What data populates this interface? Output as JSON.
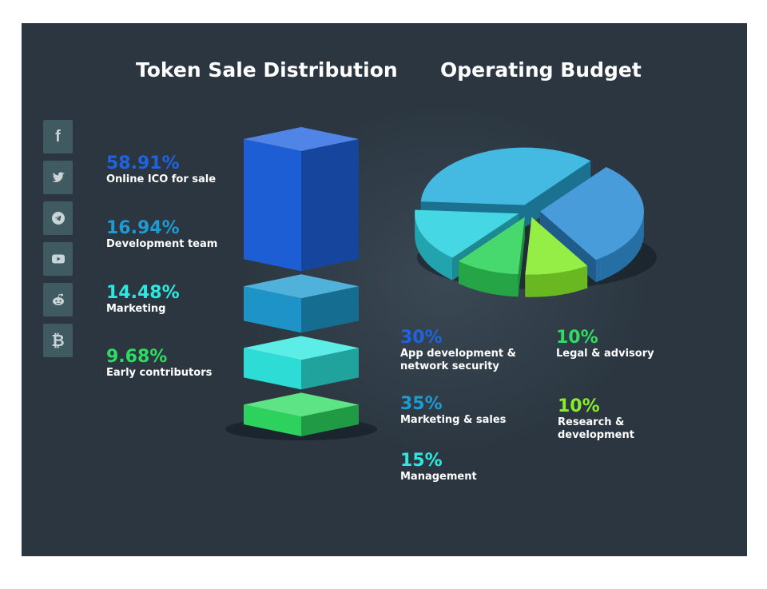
{
  "social_icons": [
    {
      "icon": "facebook-icon",
      "glyph": "f"
    },
    {
      "icon": "twitter-icon",
      "glyph": ""
    },
    {
      "icon": "telegram-icon",
      "glyph": ""
    },
    {
      "icon": "youtube-icon",
      "glyph": ""
    },
    {
      "icon": "reddit-icon",
      "glyph": ""
    },
    {
      "icon": "bitcoin-icon",
      "glyph": "₿"
    }
  ],
  "colors": {
    "background": "#2b3640",
    "blue": "#1f63e0",
    "cerulean": "#1f9bd1",
    "cyan": "#2ee8e0",
    "green": "#2fdc62",
    "lime": "#86ec2c",
    "teal_blue": "#2f8ed4",
    "aqua": "#2cd2e0"
  },
  "chart_data": [
    {
      "type": "bar",
      "title": "Token Sale Distribution",
      "categories": [
        "Online ICO for sale",
        "Development team",
        "Marketing",
        "Early contributors"
      ],
      "values": [
        58.91,
        16.94,
        14.48,
        9.68
      ],
      "labels": [
        "58.91%",
        "16.94%",
        "14.48%",
        "9.68%"
      ],
      "colors": [
        "#1f63e0",
        "#1f9bd1",
        "#2ee8e0",
        "#2fdc62"
      ]
    },
    {
      "type": "pie",
      "title": "Operating Budget",
      "categories": [
        "App development &\nnetwork security",
        "Marketing & sales",
        "Management",
        "Legal & advisory",
        "Research &\ndevelopment"
      ],
      "values": [
        30,
        35,
        15,
        10,
        10
      ],
      "labels": [
        "30%",
        "35%",
        "15%",
        "10%",
        "10%"
      ],
      "colors": [
        "#2f8ed4",
        "#2ab0de",
        "#2cd2e0",
        "#2fd45a",
        "#86ec2c"
      ]
    }
  ]
}
